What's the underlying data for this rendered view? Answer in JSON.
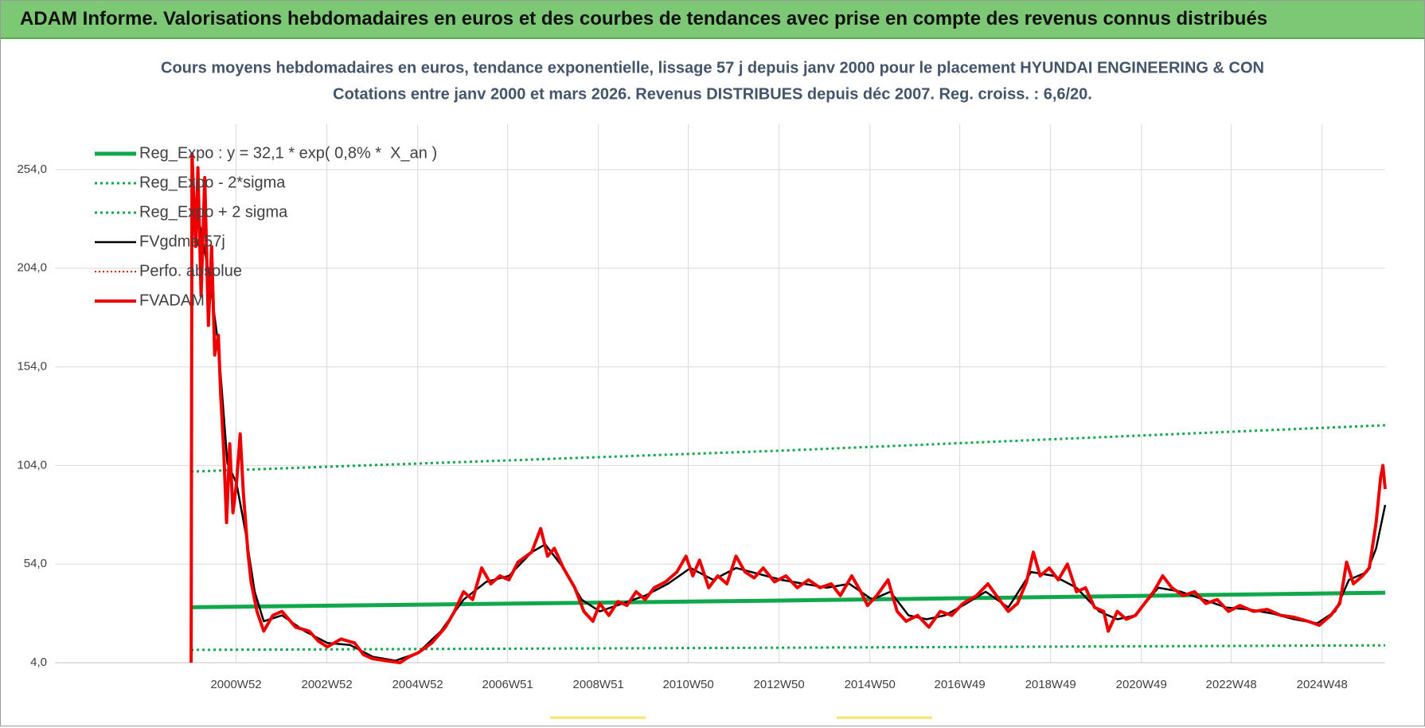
{
  "header": {
    "title": "ADAM Informe. Valorisations hebdomadaires en euros et des courbes de tendances avec prise en compte des revenus connus distribués"
  },
  "chart_data": {
    "type": "line",
    "title": "Cours moyens hebdomadaires en euros, tendance exponentielle, lissage 57 j depuis janv 2000 pour le placement HYUNDAI ENGINEERING & CON",
    "subtitle": "Cotations entre janv 2000 et mars 2026. Revenus DISTRIBUES depuis déc 2007. Reg. croiss. : 6,6/20.",
    "xlim": [
      1997.0,
      2026.3
    ],
    "ylim": [
      4,
      277
    ],
    "grid": true,
    "legend": "top-left",
    "yticks": [
      {
        "value": 4,
        "label": "4,0"
      },
      {
        "value": 54,
        "label": "54,0"
      },
      {
        "value": 104,
        "label": "104,0"
      },
      {
        "value": 154,
        "label": "154,0"
      },
      {
        "value": 204,
        "label": "204,0"
      },
      {
        "value": 254,
        "label": "254,0"
      }
    ],
    "xticks": [
      {
        "value": 2000.99,
        "label": "2000W52"
      },
      {
        "value": 2002.99,
        "label": "2002W52"
      },
      {
        "value": 2004.99,
        "label": "2004W52"
      },
      {
        "value": 2006.97,
        "label": "2006W51"
      },
      {
        "value": 2008.97,
        "label": "2008W51"
      },
      {
        "value": 2010.95,
        "label": "2010W50"
      },
      {
        "value": 2012.95,
        "label": "2012W50"
      },
      {
        "value": 2014.95,
        "label": "2014W50"
      },
      {
        "value": 2016.93,
        "label": "2016W49"
      },
      {
        "value": 2018.93,
        "label": "2018W49"
      },
      {
        "value": 2020.93,
        "label": "2020W49"
      },
      {
        "value": 2022.91,
        "label": "2022W48"
      },
      {
        "value": 2024.91,
        "label": "2024W48"
      }
    ],
    "series": [
      {
        "name": "Reg_Expo : y = 32,1 * exp( 0,8% *  X_an )",
        "color": "#10a84a",
        "style": "solid",
        "width": 5,
        "x": [
          2000.0,
          2013.0,
          2026.3
        ],
        "values": [
          32.1,
          35.5,
          39.5
        ]
      },
      {
        "name": "Reg_Expo - 2*sigma",
        "color": "#10a84a",
        "style": "dotted",
        "width": 3,
        "x": [
          2000.0,
          2013.0,
          2026.3
        ],
        "values": [
          10.5,
          11.6,
          12.8
        ]
      },
      {
        "name": "Reg_Expo + 2 sigma",
        "color": "#10a84a",
        "style": "dotted",
        "width": 3,
        "x": [
          2000.0,
          2013.0,
          2026.3
        ],
        "values": [
          100.9,
          111.5,
          124.4
        ]
      },
      {
        "name": "FVgdma 57j",
        "color": "#000000",
        "style": "solid",
        "width": 2.5,
        "x": [
          2000.05,
          2000.2,
          2000.4,
          2000.6,
          2000.8,
          2001.0,
          2001.2,
          2001.4,
          2001.6,
          2002.0,
          2002.5,
          2003.0,
          2003.5,
          2004.0,
          2004.5,
          2005.0,
          2005.5,
          2006.0,
          2006.5,
          2007.0,
          2007.5,
          2007.8,
          2008.2,
          2008.6,
          2009.0,
          2009.5,
          2010.0,
          2010.5,
          2011.0,
          2011.5,
          2012.0,
          2012.5,
          2013.0,
          2013.5,
          2014.0,
          2014.5,
          2015.0,
          2015.4,
          2015.8,
          2016.2,
          2016.6,
          2017.0,
          2017.5,
          2018.0,
          2018.5,
          2019.0,
          2019.5,
          2020.0,
          2020.4,
          2020.8,
          2021.3,
          2021.8,
          2022.3,
          2022.8,
          2023.3,
          2023.8,
          2024.3,
          2024.8,
          2025.2,
          2025.5,
          2025.9,
          2026.1,
          2026.3
        ],
        "values": [
          230,
          225,
          200,
          165,
          105,
          95,
          70,
          40,
          25,
          28,
          20,
          14,
          13,
          7,
          5,
          9,
          20,
          36,
          45,
          48,
          60,
          64,
          52,
          36,
          30,
          34,
          38,
          44,
          52,
          46,
          52,
          49,
          46,
          44,
          42,
          44,
          36,
          40,
          28,
          26,
          28,
          33,
          40,
          32,
          50,
          48,
          42,
          30,
          26,
          28,
          42,
          40,
          36,
          32,
          31,
          29,
          26,
          24,
          30,
          46,
          50,
          62,
          84
        ]
      },
      {
        "name": "Perfo. absolue",
        "color": "#e00000",
        "style": "dotted",
        "width": 2,
        "x": [],
        "values": []
      },
      {
        "name": "FVADAM",
        "color": "#ee0000",
        "style": "solid",
        "width": 4,
        "x": [
          2000.0,
          2000.02,
          2000.1,
          2000.15,
          2000.22,
          2000.3,
          2000.38,
          2000.45,
          2000.52,
          2000.6,
          2000.65,
          2000.72,
          2000.78,
          2000.85,
          2000.92,
          2001.0,
          2001.08,
          2001.15,
          2001.25,
          2001.32,
          2001.45,
          2001.6,
          2001.8,
          2002.0,
          2002.3,
          2002.6,
          2002.8,
          2003.0,
          2003.3,
          2003.6,
          2003.8,
          2004.0,
          2004.3,
          2004.6,
          2004.8,
          2005.0,
          2005.3,
          2005.6,
          2005.8,
          2006.0,
          2006.2,
          2006.4,
          2006.6,
          2006.8,
          2007.0,
          2007.2,
          2007.5,
          2007.7,
          2007.85,
          2008.0,
          2008.2,
          2008.45,
          2008.65,
          2008.85,
          2009.0,
          2009.2,
          2009.4,
          2009.6,
          2009.8,
          2010.0,
          2010.2,
          2010.45,
          2010.7,
          2010.9,
          2011.05,
          2011.2,
          2011.4,
          2011.6,
          2011.8,
          2012.0,
          2012.2,
          2012.4,
          2012.6,
          2012.85,
          2013.1,
          2013.35,
          2013.6,
          2013.85,
          2014.1,
          2014.3,
          2014.55,
          2014.75,
          2014.9,
          2015.1,
          2015.35,
          2015.55,
          2015.75,
          2016.0,
          2016.25,
          2016.5,
          2016.75,
          2017.0,
          2017.3,
          2017.55,
          2017.8,
          2018.0,
          2018.2,
          2018.4,
          2018.55,
          2018.7,
          2018.9,
          2019.1,
          2019.3,
          2019.5,
          2019.7,
          2019.9,
          2020.1,
          2020.2,
          2020.4,
          2020.6,
          2020.8,
          2021.0,
          2021.2,
          2021.4,
          2021.6,
          2021.85,
          2022.1,
          2022.35,
          2022.6,
          2022.85,
          2023.1,
          2023.4,
          2023.7,
          2024.0,
          2024.3,
          2024.6,
          2024.85,
          2025.1,
          2025.3,
          2025.45,
          2025.6,
          2025.8,
          2025.95,
          2026.1,
          2026.2,
          2026.25,
          2026.3
        ],
        "values": [
          4,
          262,
          215,
          255,
          190,
          250,
          175,
          215,
          160,
          170,
          140,
          110,
          75,
          115,
          80,
          95,
          120,
          90,
          60,
          45,
          30,
          20,
          28,
          30,
          22,
          20,
          15,
          12,
          16,
          14,
          8,
          6,
          5,
          4,
          7,
          9,
          14,
          22,
          30,
          40,
          36,
          52,
          44,
          48,
          46,
          55,
          60,
          72,
          58,
          62,
          52,
          42,
          30,
          25,
          34,
          28,
          35,
          33,
          40,
          36,
          42,
          45,
          50,
          58,
          48,
          56,
          42,
          48,
          44,
          58,
          50,
          47,
          52,
          45,
          48,
          42,
          46,
          42,
          44,
          38,
          48,
          40,
          33,
          38,
          46,
          30,
          25,
          28,
          22,
          30,
          28,
          34,
          38,
          44,
          36,
          30,
          34,
          45,
          60,
          48,
          52,
          46,
          54,
          40,
          42,
          32,
          30,
          20,
          30,
          26,
          28,
          34,
          40,
          48,
          42,
          38,
          40,
          34,
          36,
          30,
          33,
          30,
          31,
          28,
          27,
          25,
          23,
          28,
          34,
          55,
          44,
          48,
          52,
          75,
          98,
          104,
          92
        ]
      }
    ]
  }
}
